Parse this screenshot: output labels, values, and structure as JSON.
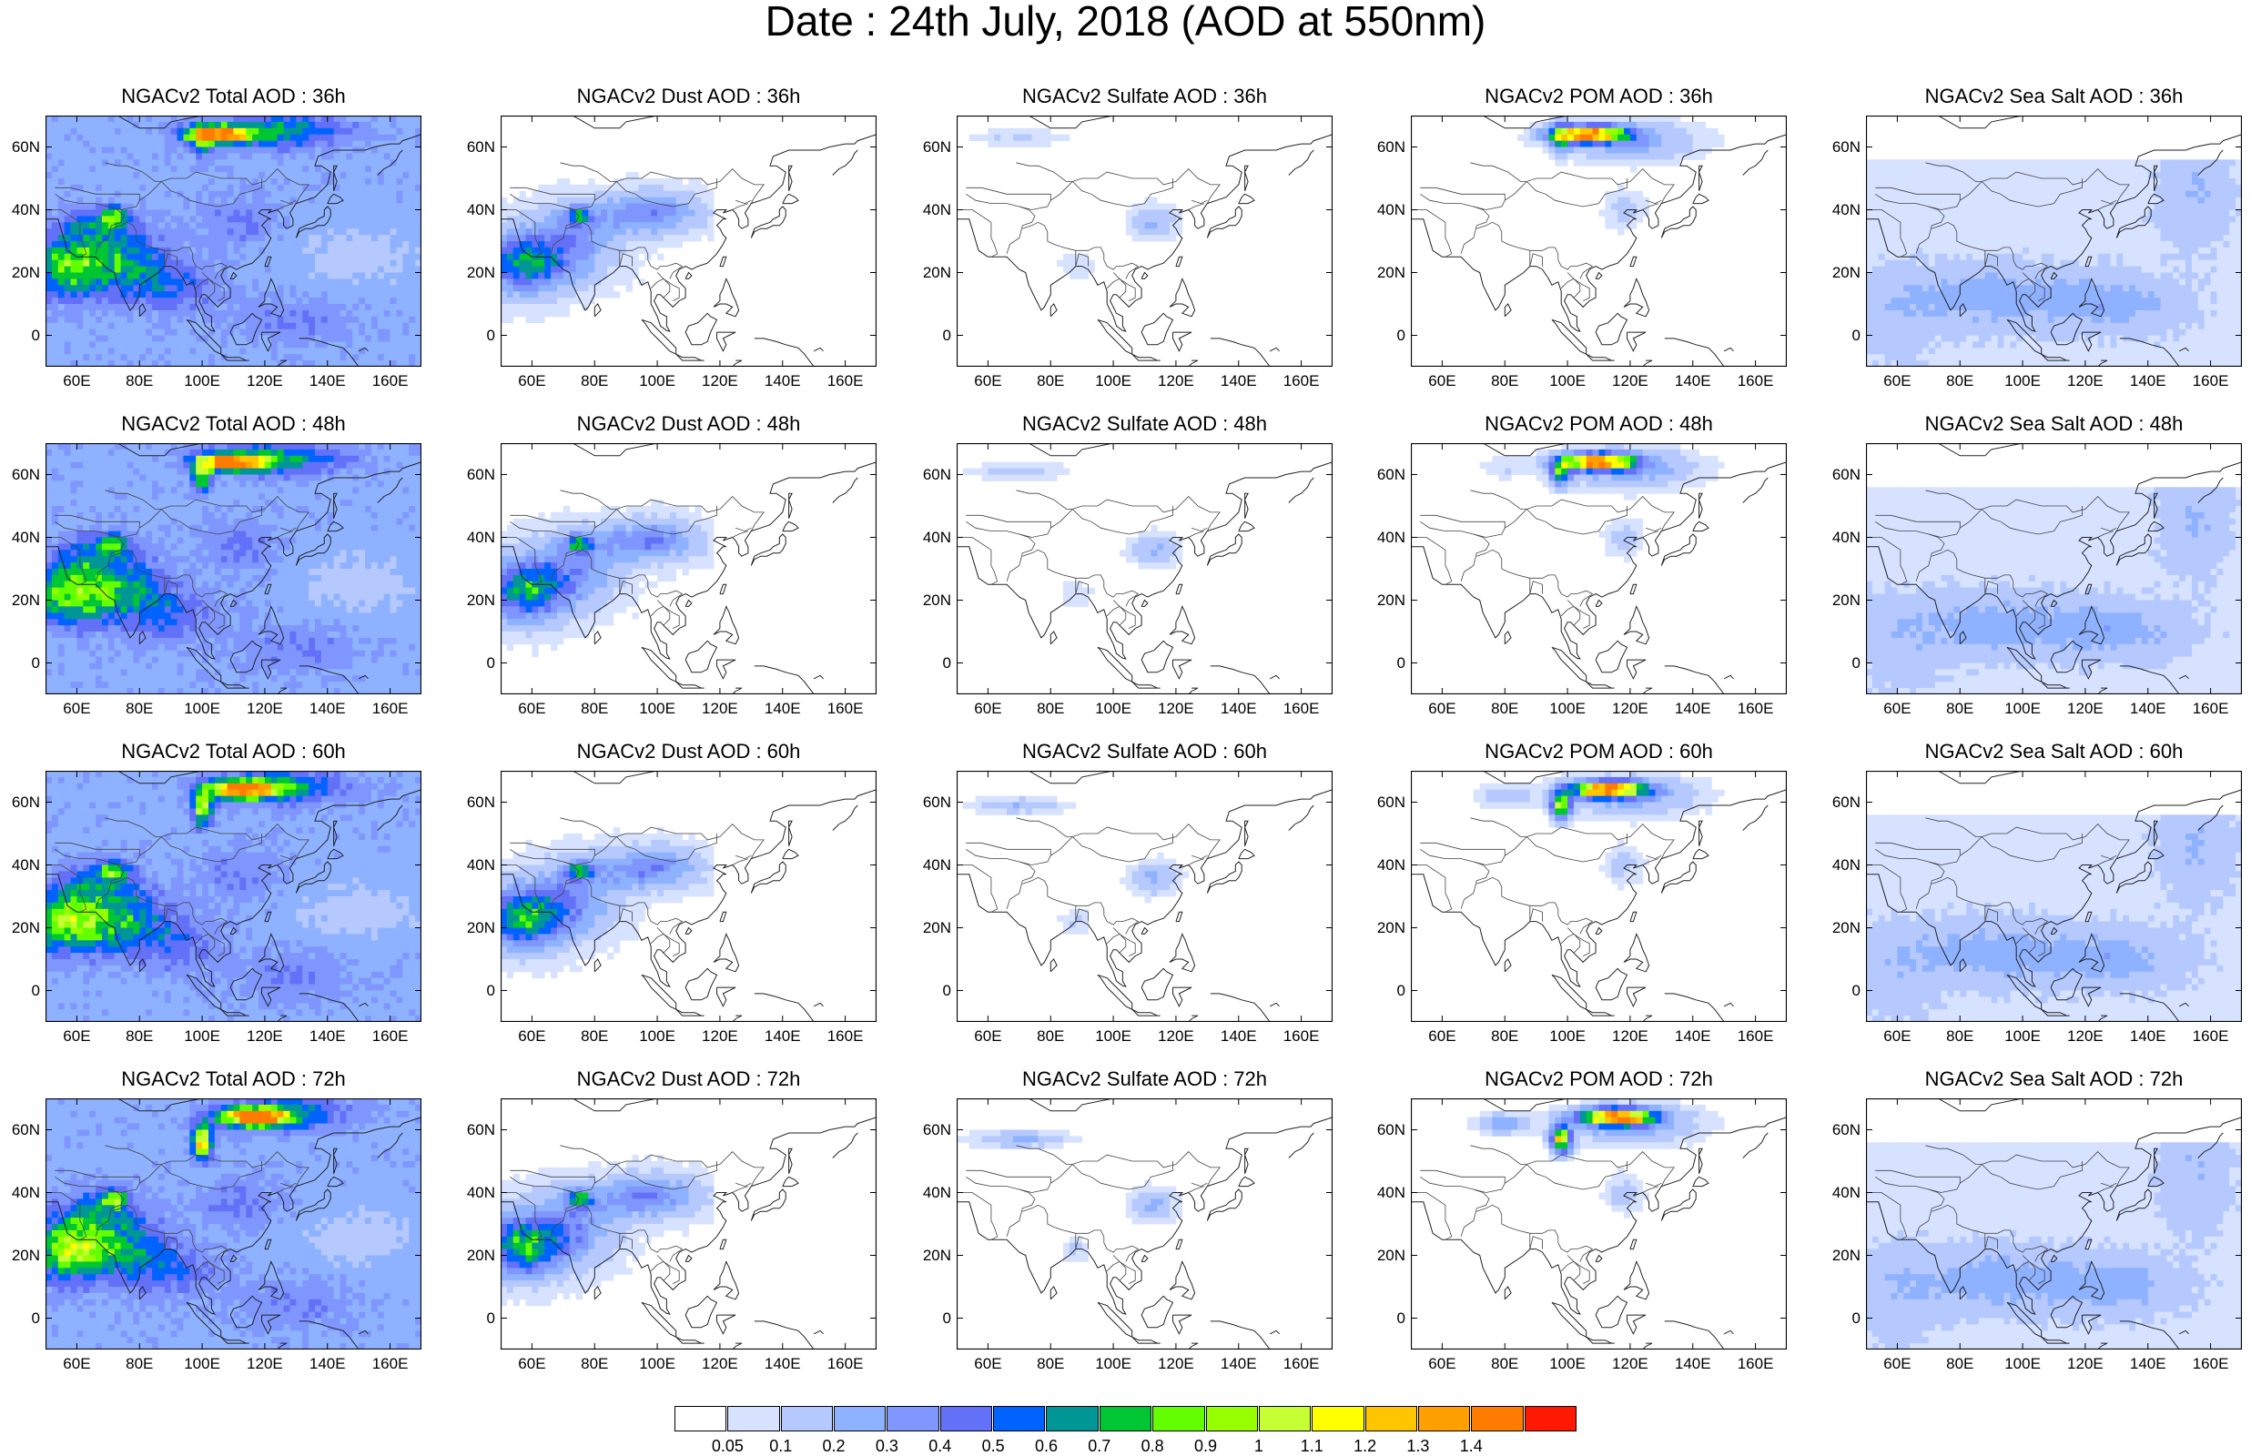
{
  "title": "Date : 24th July, 2018 (AOD at 550nm)",
  "species": [
    {
      "id": "total",
      "title_prefix": "NGACv2 Total AOD : "
    },
    {
      "id": "dust",
      "title_prefix": "NGACv2 Dust AOD : "
    },
    {
      "id": "sulfate",
      "title_prefix": "NGACv2 Sulfate AOD : "
    },
    {
      "id": "pom",
      "title_prefix": "NGACv2 POM AOD : "
    },
    {
      "id": "seasalt",
      "title_prefix": "NGACv2 Sea Salt AOD : "
    }
  ],
  "forecast_hours": [
    "36h",
    "48h",
    "60h",
    "72h"
  ],
  "panel_titles": [
    [
      "NGACv2 Total AOD : 36h",
      "NGACv2 Dust AOD : 36h",
      "NGACv2 Sulfate AOD : 36h",
      "NGACv2 POM AOD : 36h",
      "NGACv2 Sea Salt AOD : 36h"
    ],
    [
      "NGACv2 Total AOD : 48h",
      "NGACv2 Dust AOD : 48h",
      "NGACv2 Sulfate AOD : 48h",
      "NGACv2 POM AOD : 48h",
      "NGACv2 Sea Salt AOD : 48h"
    ],
    [
      "NGACv2 Total AOD : 60h",
      "NGACv2 Dust AOD : 60h",
      "NGACv2 Sulfate AOD : 60h",
      "NGACv2 POM AOD : 60h",
      "NGACv2 Sea Salt AOD : 60h"
    ],
    [
      "NGACv2 Total AOD : 72h",
      "NGACv2 Dust AOD : 72h",
      "NGACv2 Sulfate AOD : 72h",
      "NGACv2 POM AOD : 72h",
      "NGACv2 Sea Salt  AOD : 72h"
    ]
  ],
  "lat_labels": [
    "60N",
    "40N",
    "20N",
    "0"
  ],
  "lon_labels": [
    "60E",
    "80E",
    "100E",
    "120E",
    "140E",
    "160E"
  ],
  "map_extent": {
    "lon_min": 50,
    "lon_max": 170,
    "lat_min": -10,
    "lat_max": 70
  },
  "colorbar": {
    "labels": [
      "0.05",
      "0.1",
      "0.2",
      "0.3",
      "0.4",
      "0.5",
      "0.6",
      "0.7",
      "0.8",
      "0.9",
      "1",
      "1.1",
      "1.2",
      "1.3",
      "1.4"
    ],
    "colors": [
      "#ffffff",
      "#d6e2ff",
      "#b5c9ff",
      "#8eb2ff",
      "#7f96ff",
      "#6370f8",
      "#0063ff",
      "#009696",
      "#00c633",
      "#63ff00",
      "#96ff00",
      "#c6ff33",
      "#ffff00",
      "#ffc600",
      "#ffa000",
      "#ff7c00",
      "#ff1900"
    ]
  }
}
